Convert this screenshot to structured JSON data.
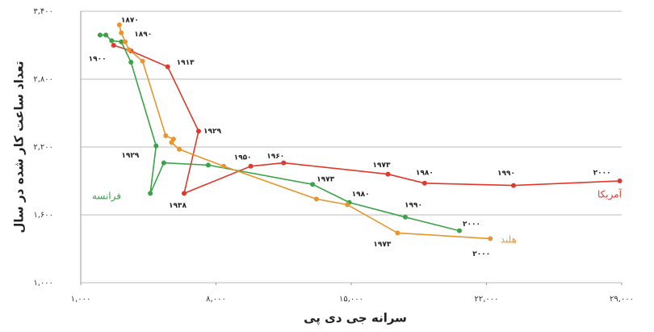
{
  "chart_data": {
    "type": "line",
    "x_label": "سرانه جی دی پی",
    "y_label": "تعداد ساعت کار شده در سال",
    "xlim": [
      1000,
      29000
    ],
    "xticks": [
      {
        "value": 1000,
        "label": "۱,۰۰۰"
      },
      {
        "value": 8000,
        "label": "۸,۰۰۰"
      },
      {
        "value": 15000,
        "label": "۱۵,۰۰۰"
      },
      {
        "value": 22000,
        "label": "۲۲,۰۰۰"
      },
      {
        "value": 29000,
        "label": "۲۹,۰۰۰"
      }
    ],
    "ylim": [
      1000,
      3400
    ],
    "yticks": [
      {
        "value": 1000,
        "label": "۱,۰۰۰"
      },
      {
        "value": 1600,
        "label": "۱,۶۰۰"
      },
      {
        "value": 2200,
        "label": "۲,۲۰۰"
      },
      {
        "value": 2800,
        "label": "۲,۸۰۰"
      },
      {
        "value": 3400,
        "label": "۳,۴۰۰"
      }
    ],
    "grid": true,
    "series": [
      {
        "name": "آمریکا",
        "color": "#e0392b",
        "x": [
          2700,
          3600,
          5500,
          7100,
          6350,
          9800,
          11500,
          16900,
          18800,
          23400,
          28900
        ],
        "values": [
          3100,
          3050,
          2910,
          2340,
          1790,
          2030,
          2060,
          1960,
          1880,
          1860,
          1900
        ],
        "labels": [
          "۱۹۰۰",
          null,
          "۱۹۱۳",
          "۱۹۲۹",
          "۱۹۳۸",
          "۱۹۵۰",
          "۱۹۶۰",
          "۱۹۷۳",
          "۱۹۸۰",
          "۱۹۹۰",
          "۲۰۰۰"
        ]
      },
      {
        "name": "فرانسه",
        "color": "#3aa346",
        "x": [
          2000,
          2300,
          2600,
          3100,
          3600,
          4900,
          4600,
          5300,
          7600,
          13000,
          14900,
          17800,
          20600
        ],
        "values": [
          3190,
          3190,
          3140,
          3130,
          2950,
          2210,
          1790,
          2060,
          2040,
          1870,
          1710,
          1580,
          1460
        ],
        "labels": [
          null,
          null,
          null,
          null,
          null,
          "۱۹۲۹",
          null,
          null,
          null,
          "۱۹۷۳",
          "۱۹۸۰",
          "۱۹۹۰",
          "۲۰۰۰"
        ]
      },
      {
        "name": "هلند",
        "color": "#e8952e",
        "x": [
          3000,
          3100,
          3300,
          3500,
          4200,
          5400,
          5800,
          5700,
          6100,
          8400,
          13200,
          14800,
          17400,
          22200
        ],
        "values": [
          3280,
          3210,
          3130,
          3060,
          2960,
          2300,
          2270,
          2240,
          2180,
          2030,
          1740,
          1690,
          1440,
          1390
        ],
        "labels": [
          "۱۸۷۰",
          "۱۸۹۰",
          null,
          null,
          null,
          null,
          null,
          null,
          null,
          null,
          null,
          null,
          "۱۹۷۳",
          "۲۰۰۰"
        ]
      }
    ]
  }
}
